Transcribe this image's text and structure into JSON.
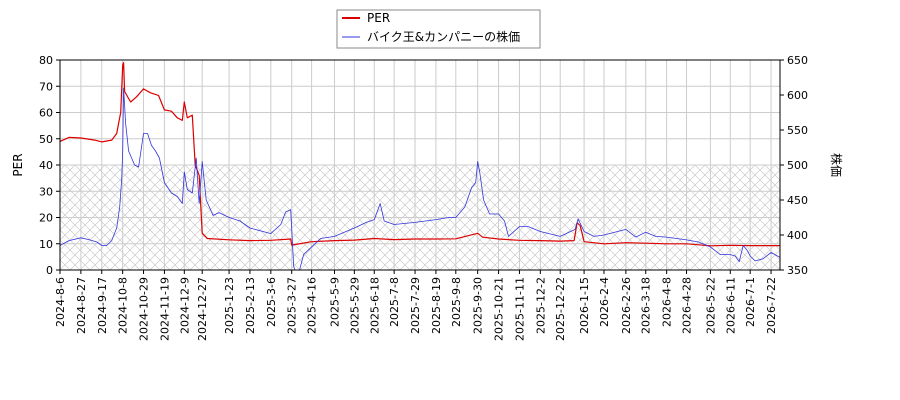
{
  "chart_data": {
    "type": "line",
    "title": "",
    "xlabel": "",
    "ylabel_left": "PER",
    "ylabel_right": "株価",
    "ylim_left": [
      0,
      80
    ],
    "ylim_right": [
      350,
      650
    ],
    "yticks_left": [
      0,
      10,
      20,
      30,
      40,
      50,
      60,
      70,
      80
    ],
    "yticks_right": [
      350,
      400,
      450,
      500,
      550,
      600,
      650
    ],
    "xlim": [
      "2024-08-06",
      "2026-07-31"
    ],
    "x_tick_labels": [
      "2024-8-6",
      "2024-8-27",
      "2024-9-17",
      "2024-10-8",
      "2024-10-29",
      "2024-11-19",
      "2024-12-9",
      "2024-12-27",
      "2025-1-23",
      "2025-2-13",
      "2025-3-6",
      "2025-3-27",
      "2025-4-16",
      "2025-5-9",
      "2025-5-29",
      "2025-6-18",
      "2025-7-8",
      "2025-7-29",
      "2025-8-19",
      "2025-9-8",
      "2025-9-30",
      "2025-10-21",
      "2025-11-11",
      "2025-12-2",
      "2025-12-22",
      "2026-1-15",
      "2026-2-4",
      "2026-2-26",
      "2026-3-18",
      "2026-4-8",
      "2026-4-28",
      "2026-5-22",
      "2026-6-11",
      "2026-7-1",
      "2026-7-22"
    ],
    "grid": true,
    "hatched_band_left": [
      0,
      40
    ],
    "legend_position": "top-center",
    "colors": {
      "per": "#dd0000",
      "price": "#3333dd",
      "grid": "#cccccc",
      "hatch": "#bbbbbb"
    },
    "series": [
      {
        "name": "PER",
        "axis": "left",
        "points": [
          [
            "2024-08-06",
            49
          ],
          [
            "2024-08-15",
            50.5
          ],
          [
            "2024-08-27",
            50.3
          ],
          [
            "2024-09-10",
            49.5
          ],
          [
            "2024-09-17",
            48.8
          ],
          [
            "2024-09-27",
            49.5
          ],
          [
            "2024-10-02",
            52
          ],
          [
            "2024-10-06",
            60
          ],
          [
            "2024-10-08",
            78
          ],
          [
            "2024-10-09",
            79
          ],
          [
            "2024-10-10",
            68
          ],
          [
            "2024-10-16",
            64
          ],
          [
            "2024-10-22",
            66
          ],
          [
            "2024-10-29",
            69
          ],
          [
            "2024-11-05",
            67.5
          ],
          [
            "2024-11-13",
            66.5
          ],
          [
            "2024-11-19",
            61
          ],
          [
            "2024-11-26",
            60.5
          ],
          [
            "2024-12-02",
            58
          ],
          [
            "2024-12-07",
            57
          ],
          [
            "2024-12-09",
            64
          ],
          [
            "2024-12-12",
            58
          ],
          [
            "2024-12-17",
            59
          ],
          [
            "2024-12-20",
            40
          ],
          [
            "2024-12-24",
            36
          ],
          [
            "2024-12-27",
            14
          ],
          [
            "2025-01-01",
            12
          ],
          [
            "2025-01-23",
            11.5
          ],
          [
            "2025-02-13",
            11.2
          ],
          [
            "2025-03-06",
            11.3
          ],
          [
            "2025-03-26",
            11.8
          ],
          [
            "2025-03-27",
            9.5
          ],
          [
            "2025-04-16",
            10.8
          ],
          [
            "2025-05-09",
            11.2
          ],
          [
            "2025-05-29",
            11.4
          ],
          [
            "2025-06-18",
            12
          ],
          [
            "2025-07-08",
            11.6
          ],
          [
            "2025-07-29",
            11.8
          ],
          [
            "2025-08-19",
            11.8
          ],
          [
            "2025-09-08",
            11.9
          ],
          [
            "2025-09-30",
            14
          ],
          [
            "2025-10-05",
            12.5
          ],
          [
            "2025-10-21",
            11.8
          ],
          [
            "2025-11-11",
            11.3
          ],
          [
            "2025-12-02",
            11.2
          ],
          [
            "2025-12-22",
            11
          ],
          [
            "2026-01-05",
            11.2
          ],
          [
            "2026-01-08",
            18
          ],
          [
            "2026-01-11",
            17
          ],
          [
            "2026-01-15",
            10.8
          ],
          [
            "2026-02-04",
            10
          ],
          [
            "2026-02-26",
            10.4
          ],
          [
            "2026-03-18",
            10.2
          ],
          [
            "2026-04-08",
            10
          ],
          [
            "2026-04-28",
            10
          ],
          [
            "2026-05-22",
            9.2
          ],
          [
            "2026-06-11",
            9.4
          ],
          [
            "2026-07-01",
            9.3
          ],
          [
            "2026-07-22",
            9.3
          ],
          [
            "2026-07-31",
            9.3
          ]
        ]
      },
      {
        "name": "バイク王&カンパニーの株価",
        "axis": "right",
        "points": [
          [
            "2024-08-06",
            385
          ],
          [
            "2024-08-15",
            392
          ],
          [
            "2024-08-27",
            396
          ],
          [
            "2024-09-05",
            393
          ],
          [
            "2024-09-12",
            390
          ],
          [
            "2024-09-17",
            385
          ],
          [
            "2024-09-22",
            385
          ],
          [
            "2024-09-27",
            392
          ],
          [
            "2024-10-02",
            410
          ],
          [
            "2024-10-05",
            440
          ],
          [
            "2024-10-07",
            480
          ],
          [
            "2024-10-08",
            520
          ],
          [
            "2024-10-09",
            610
          ],
          [
            "2024-10-11",
            560
          ],
          [
            "2024-10-14",
            520
          ],
          [
            "2024-10-17",
            510
          ],
          [
            "2024-10-20",
            500
          ],
          [
            "2024-10-24",
            497
          ],
          [
            "2024-10-29",
            545
          ],
          [
            "2024-11-02",
            545
          ],
          [
            "2024-11-06",
            528
          ],
          [
            "2024-11-10",
            520
          ],
          [
            "2024-11-14",
            510
          ],
          [
            "2024-11-19",
            475
          ],
          [
            "2024-11-26",
            460
          ],
          [
            "2024-12-02",
            455
          ],
          [
            "2024-12-07",
            445
          ],
          [
            "2024-12-09",
            490
          ],
          [
            "2024-12-12",
            465
          ],
          [
            "2024-12-17",
            460
          ],
          [
            "2024-12-21",
            510
          ],
          [
            "2024-12-24",
            445
          ],
          [
            "2024-12-27",
            505
          ],
          [
            "2024-12-31",
            450
          ],
          [
            "2025-01-07",
            428
          ],
          [
            "2025-01-13",
            432
          ],
          [
            "2025-01-23",
            425
          ],
          [
            "2025-02-03",
            420
          ],
          [
            "2025-02-13",
            410
          ],
          [
            "2025-03-06",
            402
          ],
          [
            "2025-03-16",
            415
          ],
          [
            "2025-03-21",
            433
          ],
          [
            "2025-03-26",
            436
          ],
          [
            "2025-03-29",
            355
          ],
          [
            "2025-04-02",
            340
          ],
          [
            "2025-04-08",
            372
          ],
          [
            "2025-04-16",
            383
          ],
          [
            "2025-04-25",
            395
          ],
          [
            "2025-05-09",
            398
          ],
          [
            "2025-05-29",
            410
          ],
          [
            "2025-06-10",
            418
          ],
          [
            "2025-06-18",
            422
          ],
          [
            "2025-06-24",
            445
          ],
          [
            "2025-06-28",
            420
          ],
          [
            "2025-07-08",
            415
          ],
          [
            "2025-07-29",
            418
          ],
          [
            "2025-08-19",
            422
          ],
          [
            "2025-09-01",
            425
          ],
          [
            "2025-09-08",
            425
          ],
          [
            "2025-09-17",
            440
          ],
          [
            "2025-09-24",
            468
          ],
          [
            "2025-09-28",
            475
          ],
          [
            "2025-09-30",
            505
          ],
          [
            "2025-10-02",
            490
          ],
          [
            "2025-10-06",
            450
          ],
          [
            "2025-10-12",
            430
          ],
          [
            "2025-10-21",
            430
          ],
          [
            "2025-10-27",
            420
          ],
          [
            "2025-10-31",
            398
          ],
          [
            "2025-11-11",
            412
          ],
          [
            "2025-11-20",
            412
          ],
          [
            "2025-12-02",
            405
          ],
          [
            "2025-12-22",
            398
          ],
          [
            "2026-01-06",
            408
          ],
          [
            "2026-01-09",
            423
          ],
          [
            "2026-01-15",
            405
          ],
          [
            "2026-01-25",
            398
          ],
          [
            "2026-02-04",
            400
          ],
          [
            "2026-02-26",
            408
          ],
          [
            "2026-03-08",
            397
          ],
          [
            "2026-03-18",
            404
          ],
          [
            "2026-03-28",
            398
          ],
          [
            "2026-04-08",
            397
          ],
          [
            "2026-04-28",
            393
          ],
          [
            "2026-05-10",
            390
          ],
          [
            "2026-05-22",
            383
          ],
          [
            "2026-06-01",
            372
          ],
          [
            "2026-06-11",
            372
          ],
          [
            "2026-06-16",
            370
          ],
          [
            "2026-06-20",
            362
          ],
          [
            "2026-06-24",
            385
          ],
          [
            "2026-06-28",
            378
          ],
          [
            "2026-07-01",
            370
          ],
          [
            "2026-07-06",
            363
          ],
          [
            "2026-07-14",
            366
          ],
          [
            "2026-07-22",
            375
          ],
          [
            "2026-07-26",
            372
          ],
          [
            "2026-07-31",
            368
          ]
        ]
      }
    ]
  }
}
